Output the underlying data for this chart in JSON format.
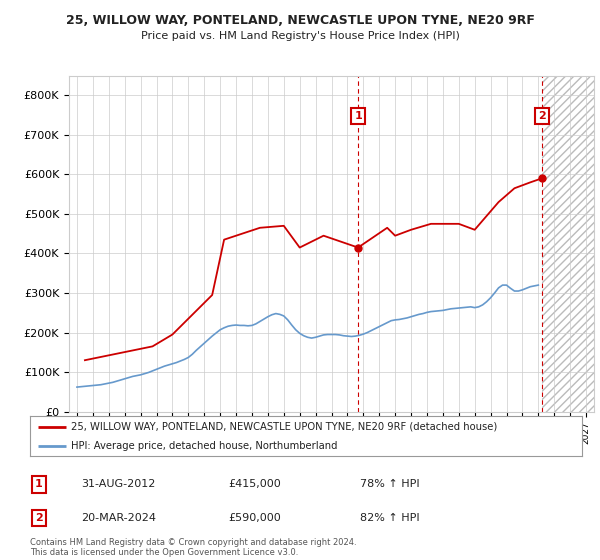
{
  "title": "25, WILLOW WAY, PONTELAND, NEWCASTLE UPON TYNE, NE20 9RF",
  "subtitle": "Price paid vs. HM Land Registry's House Price Index (HPI)",
  "x_tick_years": [
    1995,
    1996,
    1997,
    1998,
    1999,
    2000,
    2001,
    2002,
    2003,
    2004,
    2005,
    2006,
    2007,
    2008,
    2009,
    2010,
    2011,
    2012,
    2013,
    2014,
    2015,
    2016,
    2017,
    2018,
    2019,
    2020,
    2021,
    2022,
    2023,
    2024,
    2025,
    2026,
    2027
  ],
  "ylim": [
    0,
    850000
  ],
  "xlim": [
    1994.5,
    2027.5
  ],
  "ylabel_ticks": [
    0,
    100000,
    200000,
    300000,
    400000,
    500000,
    600000,
    700000,
    800000
  ],
  "ylabel_labels": [
    "£0",
    "£100K",
    "£200K",
    "£300K",
    "£400K",
    "£500K",
    "£600K",
    "£700K",
    "£800K"
  ],
  "red_color": "#cc0000",
  "blue_color": "#6699cc",
  "grid_color": "#cccccc",
  "bg_color": "#ffffff",
  "marker1_x": 2012.67,
  "marker1_y": 415000,
  "marker1_label": "1",
  "marker1_date": "31-AUG-2012",
  "marker1_price": "£415,000",
  "marker1_hpi": "78% ↑ HPI",
  "marker2_x": 2024.22,
  "marker2_y": 590000,
  "marker2_label": "2",
  "marker2_date": "20-MAR-2024",
  "marker2_price": "£590,000",
  "marker2_hpi": "82% ↑ HPI",
  "legend_line1": "25, WILLOW WAY, PONTELAND, NEWCASTLE UPON TYNE, NE20 9RF (detached house)",
  "legend_line2": "HPI: Average price, detached house, Northumberland",
  "footer": "Contains HM Land Registry data © Crown copyright and database right 2024.\nThis data is licensed under the Open Government Licence v3.0.",
  "hpi_x": [
    1995.0,
    1995.25,
    1995.5,
    1995.75,
    1996.0,
    1996.25,
    1996.5,
    1996.75,
    1997.0,
    1997.25,
    1997.5,
    1997.75,
    1998.0,
    1998.25,
    1998.5,
    1998.75,
    1999.0,
    1999.25,
    1999.5,
    1999.75,
    2000.0,
    2000.25,
    2000.5,
    2000.75,
    2001.0,
    2001.25,
    2001.5,
    2001.75,
    2002.0,
    2002.25,
    2002.5,
    2002.75,
    2003.0,
    2003.25,
    2003.5,
    2003.75,
    2004.0,
    2004.25,
    2004.5,
    2004.75,
    2005.0,
    2005.25,
    2005.5,
    2005.75,
    2006.0,
    2006.25,
    2006.5,
    2006.75,
    2007.0,
    2007.25,
    2007.5,
    2007.75,
    2008.0,
    2008.25,
    2008.5,
    2008.75,
    2009.0,
    2009.25,
    2009.5,
    2009.75,
    2010.0,
    2010.25,
    2010.5,
    2010.75,
    2011.0,
    2011.25,
    2011.5,
    2011.75,
    2012.0,
    2012.25,
    2012.5,
    2012.75,
    2013.0,
    2013.25,
    2013.5,
    2013.75,
    2014.0,
    2014.25,
    2014.5,
    2014.75,
    2015.0,
    2015.25,
    2015.5,
    2015.75,
    2016.0,
    2016.25,
    2016.5,
    2016.75,
    2017.0,
    2017.25,
    2017.5,
    2017.75,
    2018.0,
    2018.25,
    2018.5,
    2018.75,
    2019.0,
    2019.25,
    2019.5,
    2019.75,
    2020.0,
    2020.25,
    2020.5,
    2020.75,
    2021.0,
    2021.25,
    2021.5,
    2021.75,
    2022.0,
    2022.25,
    2022.5,
    2022.75,
    2023.0,
    2023.25,
    2023.5,
    2023.75,
    2024.0
  ],
  "hpi_y": [
    62000,
    63000,
    64000,
    65000,
    66000,
    67000,
    68000,
    70000,
    72000,
    74000,
    77000,
    80000,
    83000,
    86000,
    89000,
    91000,
    93000,
    96000,
    99000,
    103000,
    107000,
    111000,
    115000,
    118000,
    121000,
    124000,
    128000,
    132000,
    137000,
    145000,
    155000,
    164000,
    173000,
    182000,
    191000,
    199000,
    207000,
    212000,
    216000,
    218000,
    219000,
    218000,
    218000,
    217000,
    218000,
    222000,
    228000,
    234000,
    240000,
    245000,
    248000,
    246000,
    242000,
    232000,
    219000,
    207000,
    198000,
    192000,
    188000,
    186000,
    188000,
    191000,
    194000,
    195000,
    195000,
    195000,
    194000,
    192000,
    191000,
    190000,
    191000,
    193000,
    196000,
    200000,
    205000,
    210000,
    215000,
    220000,
    225000,
    230000,
    232000,
    233000,
    235000,
    237000,
    240000,
    243000,
    246000,
    248000,
    251000,
    253000,
    254000,
    255000,
    256000,
    258000,
    260000,
    261000,
    262000,
    263000,
    264000,
    265000,
    263000,
    265000,
    270000,
    278000,
    288000,
    300000,
    313000,
    320000,
    320000,
    312000,
    305000,
    305000,
    308000,
    312000,
    316000,
    318000,
    320000
  ],
  "price_x": [
    1995.5,
    1999.75,
    2001.0,
    2003.5,
    2004.25,
    2006.5,
    2008.0,
    2009.0,
    2010.5,
    2012.67,
    2014.5,
    2015.0,
    2016.0,
    2017.25,
    2019.0,
    2020.0,
    2021.5,
    2022.5,
    2023.5,
    2024.22
  ],
  "price_y": [
    130000,
    165000,
    195000,
    295000,
    435000,
    465000,
    470000,
    415000,
    445000,
    415000,
    465000,
    445000,
    460000,
    475000,
    475000,
    460000,
    530000,
    565000,
    580000,
    590000
  ]
}
